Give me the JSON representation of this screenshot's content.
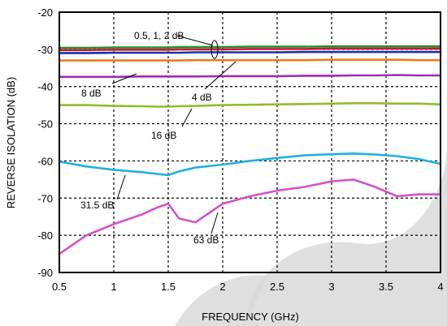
{
  "chart_data": {
    "type": "line",
    "xlabel": "FREQUENCY (GHz)",
    "ylabel": "REVERSE ISOLATION (dB)",
    "xlim": [
      0.5,
      4
    ],
    "ylim": [
      -90,
      -20
    ],
    "xticks": [
      0.5,
      1,
      1.5,
      2,
      2.5,
      3,
      3.5,
      4
    ],
    "xtick_labels": [
      "0.5",
      "1",
      "1.5",
      "2",
      "2.5",
      "3",
      "3.5",
      "4"
    ],
    "yticks": [
      -90,
      -80,
      -70,
      -60,
      -50,
      -40,
      -30,
      -20
    ],
    "ytick_labels": [
      "-90",
      "-80",
      "-70",
      "-60",
      "-50",
      "-40",
      "-30",
      "-20"
    ],
    "grid": true,
    "x": [
      0.5,
      0.75,
      1.0,
      1.25,
      1.4,
      1.5,
      1.6,
      1.75,
      2.0,
      2.25,
      2.5,
      2.75,
      3.0,
      3.2,
      3.4,
      3.6,
      3.8,
      4.0
    ],
    "series": [
      {
        "name": "0.5 dB",
        "color": "#2e8b2e",
        "values": [
          -29.6,
          -29.6,
          -29.5,
          -29.5,
          -29.5,
          -29.5,
          -29.4,
          -29.4,
          -29.4,
          -29.3,
          -29.3,
          -29.3,
          -29.2,
          -29.2,
          -29.2,
          -29.2,
          -29.2,
          -29.2
        ]
      },
      {
        "name": "1 dB",
        "color": "#c0202a",
        "values": [
          -30.2,
          -30.2,
          -30.1,
          -30.1,
          -30.1,
          -30.1,
          -30.0,
          -30.0,
          -30.0,
          -29.9,
          -29.9,
          -29.9,
          -29.8,
          -29.8,
          -29.8,
          -29.8,
          -29.8,
          -29.8
        ]
      },
      {
        "name": "2 dB",
        "color": "#1a2fb0",
        "values": [
          -31.0,
          -31.0,
          -30.9,
          -30.9,
          -30.9,
          -30.9,
          -30.9,
          -30.8,
          -30.8,
          -30.8,
          -30.8,
          -30.7,
          -30.7,
          -30.7,
          -30.7,
          -30.7,
          -30.7,
          -30.7
        ]
      },
      {
        "name": "4 dB",
        "color": "#f07820",
        "values": [
          -33.0,
          -33.0,
          -33.0,
          -33.0,
          -33.0,
          -33.0,
          -33.0,
          -32.9,
          -32.9,
          -32.9,
          -32.9,
          -32.9,
          -32.8,
          -32.8,
          -32.8,
          -32.8,
          -32.9,
          -32.9
        ]
      },
      {
        "name": "8 dB",
        "color": "#9a2fb8",
        "values": [
          -37.4,
          -37.4,
          -37.4,
          -37.3,
          -37.3,
          -37.3,
          -37.3,
          -37.3,
          -37.2,
          -37.2,
          -37.2,
          -37.1,
          -37.1,
          -37.0,
          -37.0,
          -36.9,
          -37.0,
          -37.0
        ]
      },
      {
        "name": "16 dB",
        "color": "#8cbf2a",
        "values": [
          -45.0,
          -45.0,
          -45.2,
          -45.3,
          -45.4,
          -45.4,
          -45.3,
          -45.2,
          -45.0,
          -44.9,
          -44.8,
          -44.7,
          -44.6,
          -44.5,
          -44.5,
          -44.6,
          -44.6,
          -44.8
        ]
      },
      {
        "name": "31.5 dB",
        "color": "#1fb0e0",
        "values": [
          -60.2,
          -61.5,
          -62.4,
          -63.0,
          -63.5,
          -63.8,
          -62.8,
          -61.8,
          -61.0,
          -60.0,
          -59.2,
          -58.5,
          -58.2,
          -58.0,
          -58.3,
          -58.7,
          -59.5,
          -60.8
        ]
      },
      {
        "name": "63 dB",
        "color": "#d451c8",
        "values": [
          -85.0,
          -80.0,
          -77.0,
          -74.5,
          -72.5,
          -71.5,
          -75.5,
          -76.5,
          -71.5,
          -69.5,
          -68.0,
          -67.0,
          -65.5,
          -65.0,
          -67.0,
          -69.5,
          -69.0,
          -69.0
        ]
      }
    ],
    "annotations": [
      "0.5, 1, 2 dB",
      "4 dB",
      "8 dB",
      "16 dB",
      "31.5 dB",
      "63 dB"
    ]
  }
}
